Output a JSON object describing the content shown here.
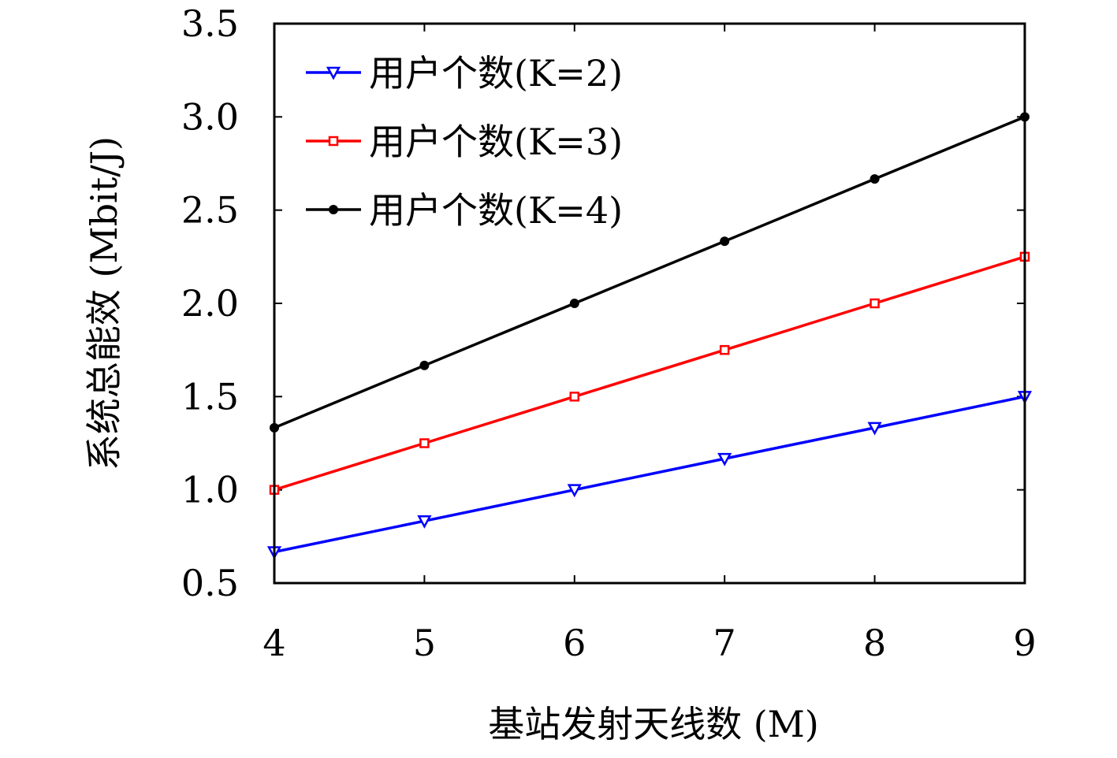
{
  "chart_data": {
    "type": "line",
    "title": "",
    "xlabel": "基站发射天线数 (M)",
    "ylabel": "系统总能效 (Mbit/J)",
    "x": [
      4,
      5,
      6,
      7,
      8,
      9
    ],
    "xlim": [
      4,
      9
    ],
    "ylim": [
      0.5,
      3.5
    ],
    "x_ticks": [
      "4",
      "5",
      "6",
      "7",
      "8",
      "9"
    ],
    "y_ticks": [
      "0.5",
      "1.0",
      "1.5",
      "2.0",
      "2.5",
      "3.0",
      "3.5"
    ],
    "grid": false,
    "legend_position": "top-left",
    "series": [
      {
        "name": "用户个数(K=2)",
        "color": "#0000ff",
        "marker": "triangle-down",
        "values": [
          0.667,
          0.833,
          1.0,
          1.167,
          1.333,
          1.5
        ]
      },
      {
        "name": "用户个数(K=3)",
        "color": "#ff0000",
        "marker": "square",
        "values": [
          1.0,
          1.25,
          1.5,
          1.75,
          2.0,
          2.25
        ]
      },
      {
        "name": "用户个数(K=4)",
        "color": "#000000",
        "marker": "circle",
        "values": [
          1.333,
          1.667,
          2.0,
          2.333,
          2.667,
          3.0
        ]
      }
    ]
  }
}
